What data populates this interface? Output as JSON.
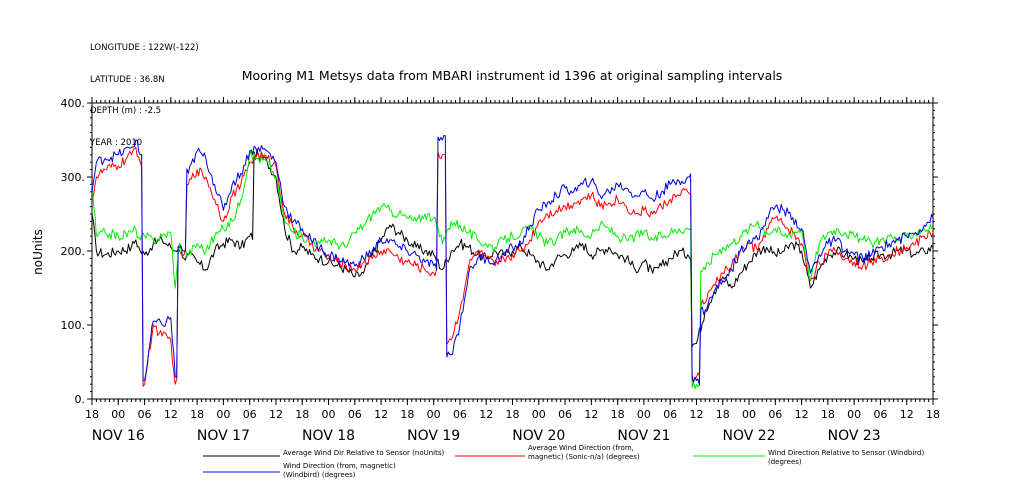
{
  "meta": {
    "longitude": "LONGITUDE : 122W(-122)",
    "latitude": "LATITUDE : 36.8N",
    "depth": "DEPTH (m) : -2.5",
    "year": "YEAR : 2010"
  },
  "chart_data": {
    "type": "line",
    "title": "Mooring M1 Metsys data from MBARI instrument id 1396 at original sampling intervals",
    "ylabel": "noUnits",
    "xlabel": "",
    "ylim": [
      0,
      400
    ],
    "yticks": [
      0,
      100,
      200,
      300,
      400
    ],
    "ytick_labels": [
      "0.",
      "100.",
      "200.",
      "300.",
      "400."
    ],
    "xlim_hours": [
      0,
      192
    ],
    "hour_ticks": [
      "18",
      "00",
      "06",
      "12",
      "18",
      "00",
      "06",
      "12",
      "18",
      "00",
      "06",
      "12",
      "18",
      "00",
      "06",
      "12",
      "18",
      "00",
      "06",
      "12",
      "18",
      "00",
      "06",
      "12",
      "18",
      "00",
      "06",
      "12",
      "18",
      "00",
      "06",
      "12",
      "18"
    ],
    "day_labels": [
      "NOV 16",
      "NOV 17",
      "NOV 18",
      "NOV 19",
      "NOV 20",
      "NOV 21",
      "NOV 22",
      "NOV 23"
    ],
    "grid": false,
    "legend_position": "bottom",
    "series": [
      {
        "name": "Average Wind Dir Relative to Sensor (noUnits)",
        "color": "#000000",
        "x": [
          0,
          1,
          3,
          6,
          9,
          10,
          11,
          12,
          14,
          16,
          18,
          19,
          20,
          21,
          22,
          24,
          26,
          28,
          30,
          32,
          34,
          36,
          38,
          40,
          42,
          44,
          46,
          48,
          50,
          52,
          54,
          56,
          58,
          60,
          62,
          64,
          66,
          68,
          70,
          72,
          74,
          76,
          78,
          80,
          82,
          84,
          86,
          88,
          90,
          92,
          94,
          96,
          98,
          100,
          102,
          104,
          106,
          108,
          110,
          112,
          114,
          116,
          118,
          120,
          122,
          124,
          126,
          128,
          130,
          132,
          134,
          136,
          138,
          140,
          142,
          144,
          146,
          148,
          150,
          152,
          154,
          156,
          158,
          160,
          162,
          164,
          166,
          168,
          170,
          172,
          174,
          176,
          178,
          180,
          182,
          184,
          186,
          188,
          190,
          192
        ],
        "y": [
          250,
          200,
          195,
          200,
          205,
          215,
          200,
          195,
          210,
          215,
          205,
          200,
          210,
          190,
          195,
          185,
          175,
          200,
          210,
          215,
          205,
          220,
          330,
          320,
          300,
          230,
          200,
          205,
          195,
          190,
          185,
          180,
          175,
          165,
          170,
          195,
          215,
          235,
          225,
          215,
          205,
          200,
          195,
          175,
          200,
          210,
          205,
          195,
          190,
          200,
          195,
          200,
          205,
          195,
          185,
          175,
          190,
          195,
          200,
          210,
          195,
          200,
          205,
          195,
          190,
          175,
          185,
          170,
          180,
          190,
          200,
          195,
          75,
          120,
          145,
          165,
          150,
          170,
          185,
          200,
          205,
          195,
          200,
          210,
          200,
          150,
          175,
          195,
          200,
          195,
          190,
          185,
          190,
          195,
          195,
          200,
          200,
          195,
          200,
          205
        ]
      },
      {
        "name": "Average Wind Direction (from, magnetic) (Sonic-n/a) (degrees)",
        "color": "#ff0000",
        "x": [
          0,
          1,
          3,
          6,
          9,
          10,
          11,
          12,
          14,
          16,
          18,
          19,
          20,
          21,
          22,
          24,
          26,
          28,
          30,
          32,
          34,
          36,
          38,
          40,
          42,
          44,
          46,
          48,
          50,
          52,
          54,
          56,
          58,
          60,
          62,
          64,
          66,
          68,
          70,
          72,
          74,
          76,
          78,
          80,
          82,
          84,
          86,
          88,
          90,
          92,
          94,
          96,
          98,
          100,
          102,
          104,
          106,
          108,
          110,
          112,
          114,
          116,
          118,
          120,
          122,
          124,
          126,
          128,
          130,
          132,
          134,
          136,
          138,
          140,
          142,
          144,
          146,
          148,
          150,
          152,
          154,
          156,
          158,
          160,
          162,
          164,
          166,
          168,
          170,
          172,
          174,
          176,
          178,
          180,
          182,
          184,
          186,
          188,
          190,
          192
        ],
        "y": [
          270,
          300,
          310,
          315,
          330,
          340,
          320,
          20,
          100,
          85,
          80,
          20,
          200,
          195,
          290,
          310,
          300,
          270,
          240,
          275,
          290,
          320,
          330,
          325,
          315,
          250,
          230,
          220,
          210,
          200,
          190,
          185,
          180,
          175,
          185,
          190,
          200,
          200,
          190,
          185,
          180,
          175,
          170,
          330,
          80,
          120,
          180,
          200,
          190,
          180,
          190,
          195,
          200,
          215,
          240,
          250,
          255,
          260,
          265,
          270,
          275,
          260,
          265,
          270,
          260,
          250,
          255,
          250,
          260,
          270,
          275,
          280,
          30,
          130,
          155,
          170,
          180,
          200,
          210,
          200,
          230,
          245,
          235,
          225,
          210,
          160,
          185,
          195,
          200,
          190,
          185,
          180,
          185,
          190,
          195,
          200,
          205,
          210,
          220,
          225
        ]
      },
      {
        "name": "Wind Direction Relative to Sensor (Windbird) (degrees)",
        "color": "#00ee00",
        "x": [
          0,
          1,
          3,
          6,
          9,
          10,
          11,
          12,
          14,
          16,
          18,
          19,
          20,
          21,
          22,
          24,
          26,
          28,
          30,
          32,
          34,
          36,
          38,
          40,
          42,
          44,
          46,
          48,
          50,
          52,
          54,
          56,
          58,
          60,
          62,
          64,
          66,
          68,
          70,
          72,
          74,
          76,
          78,
          80,
          82,
          84,
          86,
          88,
          90,
          92,
          94,
          96,
          98,
          100,
          102,
          104,
          106,
          108,
          110,
          112,
          114,
          116,
          118,
          120,
          122,
          124,
          126,
          128,
          130,
          132,
          134,
          136,
          138,
          140,
          142,
          144,
          146,
          148,
          150,
          152,
          154,
          156,
          158,
          160,
          162,
          164,
          166,
          168,
          170,
          172,
          174,
          176,
          178,
          180,
          182,
          184,
          186,
          188,
          190,
          192
        ],
        "y": [
          290,
          220,
          225,
          220,
          225,
          230,
          215,
          220,
          215,
          220,
          225,
          150,
          210,
          200,
          195,
          210,
          200,
          220,
          230,
          240,
          270,
          330,
          325,
          320,
          300,
          240,
          225,
          220,
          215,
          210,
          215,
          210,
          205,
          225,
          235,
          250,
          260,
          255,
          250,
          245,
          240,
          250,
          245,
          210,
          240,
          235,
          225,
          215,
          210,
          205,
          215,
          220,
          225,
          230,
          220,
          210,
          215,
          225,
          230,
          225,
          220,
          235,
          230,
          220,
          215,
          220,
          225,
          215,
          220,
          225,
          230,
          230,
          20,
          175,
          195,
          205,
          210,
          220,
          230,
          240,
          225,
          230,
          220,
          225,
          230,
          160,
          210,
          225,
          230,
          225,
          220,
          215,
          210,
          215,
          220,
          215,
          220,
          225,
          230,
          230
        ]
      },
      {
        "name": "Wind Direction (from, magnetic) (Windbird) (degrees)",
        "color": "#0000dd",
        "x": [
          0,
          1,
          3,
          6,
          9,
          10,
          11,
          12,
          14,
          16,
          18,
          19,
          20,
          21,
          22,
          24,
          26,
          28,
          30,
          32,
          34,
          36,
          38,
          40,
          42,
          44,
          46,
          48,
          50,
          52,
          54,
          56,
          58,
          60,
          62,
          64,
          66,
          68,
          70,
          72,
          74,
          76,
          78,
          80,
          82,
          84,
          86,
          88,
          90,
          92,
          94,
          96,
          98,
          100,
          102,
          104,
          106,
          108,
          110,
          112,
          114,
          116,
          118,
          120,
          122,
          124,
          126,
          128,
          130,
          132,
          134,
          136,
          138,
          140,
          142,
          144,
          146,
          148,
          150,
          152,
          154,
          156,
          158,
          160,
          162,
          164,
          166,
          168,
          170,
          172,
          174,
          176,
          178,
          180,
          182,
          184,
          186,
          188,
          190,
          192
        ],
        "y": [
          280,
          320,
          325,
          330,
          340,
          350,
          330,
          25,
          105,
          100,
          110,
          30,
          205,
          200,
          305,
          335,
          325,
          290,
          255,
          290,
          305,
          335,
          340,
          335,
          320,
          260,
          240,
          230,
          215,
          205,
          195,
          190,
          185,
          180,
          190,
          200,
          215,
          215,
          205,
          200,
          195,
          185,
          180,
          350,
          60,
          100,
          170,
          190,
          190,
          185,
          195,
          205,
          210,
          235,
          255,
          265,
          275,
          285,
          280,
          290,
          295,
          275,
          280,
          290,
          285,
          275,
          280,
          270,
          280,
          290,
          295,
          300,
          25,
          120,
          145,
          160,
          175,
          200,
          215,
          215,
          245,
          260,
          255,
          245,
          230,
          170,
          195,
          210,
          215,
          200,
          195,
          190,
          195,
          205,
          210,
          215,
          220,
          225,
          235,
          245
        ]
      }
    ]
  }
}
